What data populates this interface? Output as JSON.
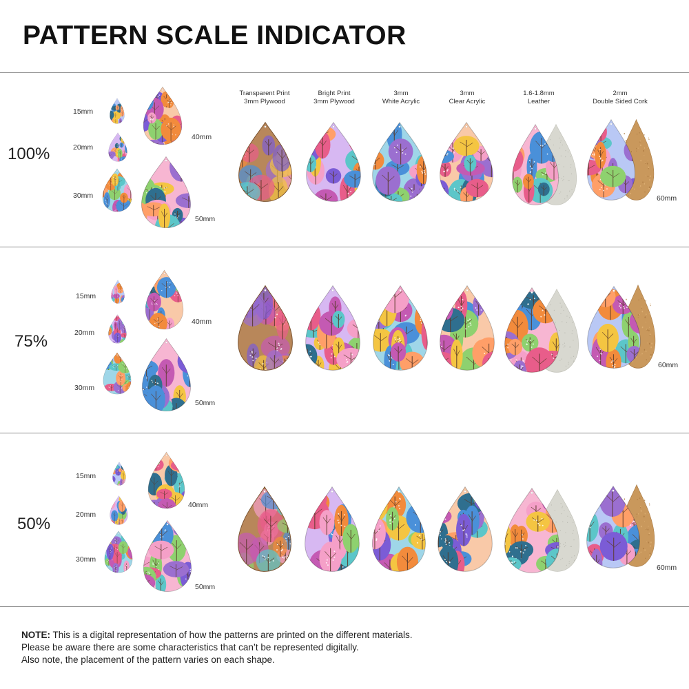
{
  "title": "PATTERN SCALE INDICATOR",
  "materials": [
    {
      "line1": "Transparent Print",
      "line2": "3mm Plywood"
    },
    {
      "line1": "Bright Print",
      "line2": "3mm Plywood"
    },
    {
      "line1": "3mm",
      "line2": "White Acrylic"
    },
    {
      "line1": "3mm",
      "line2": "Clear Acrylic"
    },
    {
      "line1": "1.6-1.8mm",
      "line2": "Leather"
    },
    {
      "line1": "2mm",
      "line2": "Double Sided Cork"
    }
  ],
  "sections": [
    {
      "scale": "100%",
      "sizes": {
        "s15": "15mm",
        "s20": "20mm",
        "s30": "30mm",
        "s40": "40mm",
        "s50": "50mm",
        "s60": "60mm"
      }
    },
    {
      "scale": "75%",
      "sizes": {
        "s15": "15mm",
        "s20": "20mm",
        "s30": "30mm",
        "s40": "40mm",
        "s50": "50mm",
        "s60": "60mm"
      }
    },
    {
      "scale": "50%",
      "sizes": {
        "s15": "15mm",
        "s20": "20mm",
        "s30": "30mm",
        "s40": "40mm",
        "s50": "50mm",
        "s60": "60mm"
      }
    }
  ],
  "note": {
    "label": "NOTE:",
    "line1": " This is a digital representation of how the patterns are printed on the different materials.",
    "line2": "Please be aware there are some characteristics that can’t be represented digitally.",
    "line3": "Also note, the placement of the pattern varies on each shape."
  },
  "colors": {
    "wood": "#b8875a",
    "leather_back": "#d8d8d0",
    "cork_back": "#c9985c",
    "divider": "#8a8a8a"
  }
}
